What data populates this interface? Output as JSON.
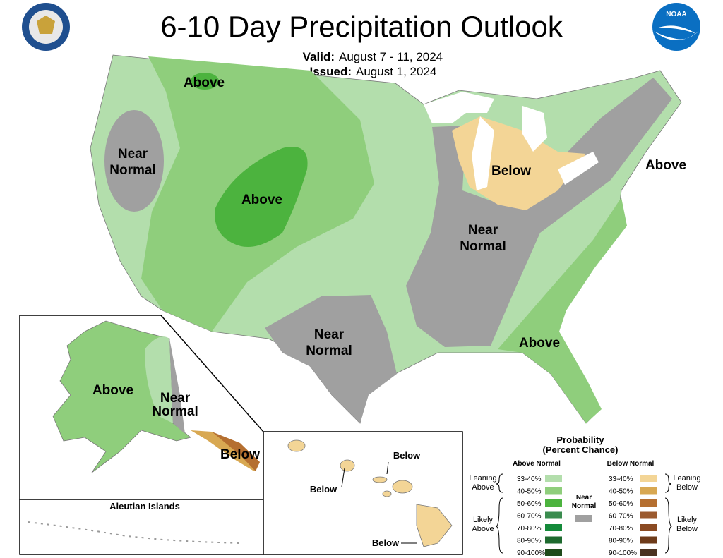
{
  "header": {
    "title": "6-10 Day Precipitation Outlook",
    "valid_label": "Valid:",
    "valid_dates": "August 7 - 11, 2024",
    "issued_label": "Issued:",
    "issued_date": "August 1, 2024",
    "noaa": "NOAA"
  },
  "conus": {
    "labels": [
      [
        "Above"
      ],
      [
        "Near",
        "Normal"
      ],
      [
        "Above"
      ],
      [
        "Below"
      ],
      [
        "Above"
      ],
      [
        "Near",
        "Normal"
      ],
      [
        "Near",
        "Normal"
      ],
      [
        "Above"
      ]
    ]
  },
  "alaska": {
    "labels": [
      [
        "Above"
      ],
      [
        "Near",
        "Normal"
      ],
      [
        "Below"
      ]
    ],
    "aleutian_title": "Aleutian Islands"
  },
  "hawaii": {
    "labels": [
      "Below",
      "Below",
      "Below"
    ]
  },
  "legend": {
    "title": [
      "Probability",
      "(Percent Chance)"
    ],
    "above_header": "Above Normal",
    "below_header": "Below Normal",
    "near_header": [
      "Near",
      "Normal"
    ],
    "above_ranges": [
      "33-40%",
      "40-50%",
      "50-60%",
      "60-70%",
      "70-80%",
      "80-90%",
      "90-100%"
    ],
    "below_ranges": [
      "33-40%",
      "40-50%",
      "50-60%",
      "60-70%",
      "70-80%",
      "80-90%",
      "90-100%"
    ],
    "leaning_above": [
      "Leaning",
      "Above"
    ],
    "likely_above": [
      "Likely",
      "Above"
    ],
    "leaning_below": [
      "Leaning",
      "Below"
    ],
    "likely_below": [
      "Likely",
      "Below"
    ]
  }
}
